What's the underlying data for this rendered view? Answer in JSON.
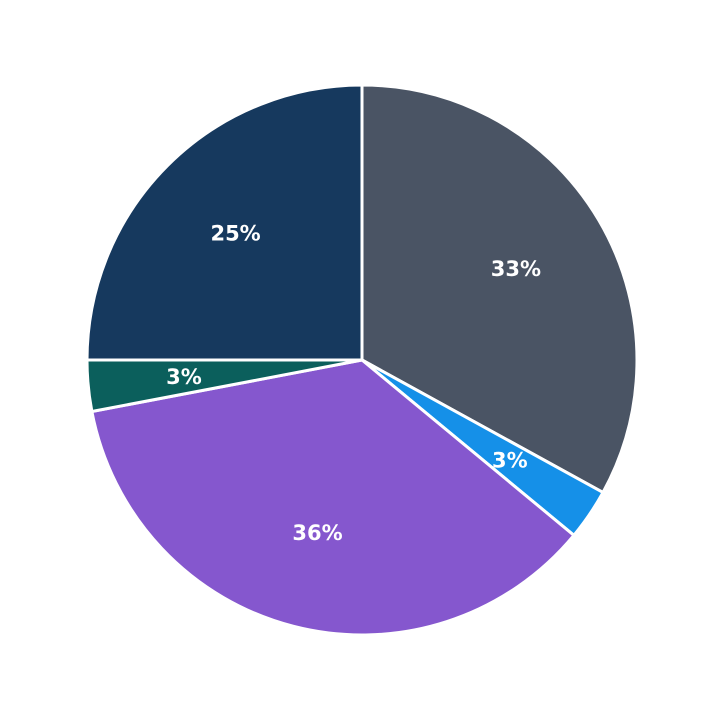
{
  "chart_data": {
    "type": "pie",
    "title": "",
    "slices": [
      {
        "label": "33%",
        "value": 33,
        "color": "#4A5464"
      },
      {
        "label": "3%",
        "value": 3,
        "color": "#1590E8"
      },
      {
        "label": "36%",
        "value": 36,
        "color": "#8557CE"
      },
      {
        "label": "3%",
        "value": 3,
        "color": "#0B5F5C"
      },
      {
        "label": "25%",
        "value": 25,
        "color": "#16395E"
      }
    ],
    "start_angle": "top",
    "direction": "clockwise",
    "label_color": "#FFFFFF",
    "separator_color": "#FFFFFF",
    "separator_width": 3,
    "label_radius_fraction": 0.65,
    "legend": "none",
    "background": "#FFFFFF"
  }
}
